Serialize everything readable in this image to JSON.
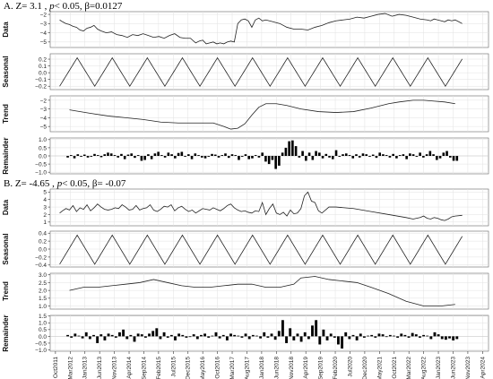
{
  "panel_a_title": {
    "prefix": "A.  Z= 3.1 , ",
    "p": "p",
    "rest": "< 0.05, β=0.0127"
  },
  "panel_b_title": {
    "prefix": "B.  Z= -4.65 , ",
    "p": "p",
    "rest": "< 0.05, β= -0.07"
  },
  "x_ticks": [
    "Oct2011",
    "Mar2012",
    "Jan2013",
    "Jun2013",
    "Nov2013",
    "Apr2014",
    "Sep2014",
    "Feb2015",
    "Jul2015",
    "Dec2015",
    "May2016",
    "Oct2016",
    "Mar2017",
    "Aug2017",
    "Jan2018",
    "Jun2018",
    "Nov2018",
    "Apr2019",
    "Sep2019",
    "Feb2020",
    "Jul2020",
    "Dec2020",
    "May2021",
    "Oct2021",
    "Mar2022",
    "Aug2022",
    "Jan2023",
    "Jun2023",
    "Nov2023",
    "Apr2024"
  ],
  "chart_data": [
    {
      "type": "line",
      "panel": "A",
      "subplots": [
        {
          "ylabel": "Data",
          "ylim": [
            -5.6,
            -1.7
          ],
          "yticks": [
            -2,
            -3,
            -4,
            -5
          ],
          "x": [
            0.12,
            0.2,
            0.3,
            0.4,
            0.5,
            0.6,
            0.7,
            0.8,
            0.9,
            1.0,
            1.1,
            1.2,
            1.3,
            1.45,
            1.6,
            1.75,
            1.9,
            2.05,
            2.2,
            2.35,
            2.5,
            2.65,
            2.8,
            2.95,
            3.1,
            3.25,
            3.4,
            3.55,
            3.7,
            3.85,
            4.0,
            4.1,
            4.2,
            4.3,
            4.4,
            4.5,
            4.6,
            4.7,
            4.8,
            4.9,
            5.0,
            5.1,
            5.2,
            5.3,
            5.4,
            5.5,
            5.6,
            5.7,
            5.8,
            5.9,
            6.0,
            6.2,
            6.4,
            6.6,
            6.8,
            7.0,
            7.2,
            7.4,
            7.6,
            7.8,
            8.0,
            8.2,
            8.4,
            8.6,
            8.8,
            9.0,
            9.2,
            9.4,
            9.6,
            9.8,
            10.0,
            10.2,
            10.4,
            10.6,
            10.7,
            10.8,
            10.9,
            11.0,
            11.1,
            11.2,
            11.3,
            11.4,
            11.5,
            11.6
          ],
          "y": [
            -2.6,
            -2.8,
            -3.0,
            -3.1,
            -3.3,
            -3.4,
            -3.7,
            -3.8,
            -3.5,
            -3.4,
            -3.2,
            -3.6,
            -3.8,
            -4.0,
            -3.9,
            -4.2,
            -4.3,
            -4.5,
            -4.2,
            -4.3,
            -4.1,
            -4.3,
            -4.5,
            -4.4,
            -4.6,
            -4.3,
            -4.1,
            -4.5,
            -4.6,
            -4.6,
            -5.1,
            -4.9,
            -4.8,
            -5.2,
            -5.1,
            -5.0,
            -5.2,
            -5.1,
            -5.2,
            -5.0,
            -4.9,
            -5.0,
            -3.0,
            -2.6,
            -2.5,
            -2.7,
            -3.4,
            -2.6,
            -2.4,
            -2.7,
            -2.6,
            -2.8,
            -3.0,
            -3.4,
            -3.6,
            -3.6,
            -3.7,
            -3.4,
            -3.2,
            -2.9,
            -2.7,
            -2.6,
            -2.5,
            -2.3,
            -2.4,
            -2.2,
            -2.0,
            -1.9,
            -2.2,
            -2.0,
            -2.1,
            -2.3,
            -2.5,
            -2.6,
            -2.7,
            -2.5,
            -2.6,
            -2.7,
            -2.8,
            -2.6,
            -2.7,
            -2.6,
            -2.8,
            -3.0
          ]
        },
        {
          "ylabel": "Seasonal",
          "ylim": [
            -0.25,
            0.28
          ],
          "yticks": [
            0.2,
            0.1,
            0.0,
            -0.1,
            -0.2
          ],
          "seasonal": {
            "start": 0.12,
            "end": 11.6,
            "period": 1.0,
            "min": -0.2,
            "max": 0.22
          }
        },
        {
          "ylabel": "Trend",
          "ylim": [
            -5.6,
            -1.5
          ],
          "yticks": [
            -2,
            -3,
            -4,
            -5
          ],
          "x": [
            0.4,
            1.0,
            1.5,
            2.0,
            2.5,
            3.0,
            3.5,
            4.0,
            4.5,
            4.8,
            5.0,
            5.2,
            5.4,
            5.6,
            5.8,
            6.0,
            6.3,
            6.6,
            7.0,
            7.5,
            8.0,
            8.5,
            9.0,
            9.5,
            9.8,
            10.2,
            10.5,
            10.8,
            11.1,
            11.4
          ],
          "y": [
            -3.1,
            -3.5,
            -3.8,
            -4.0,
            -4.2,
            -4.5,
            -4.6,
            -4.6,
            -4.6,
            -5.0,
            -5.3,
            -5.2,
            -4.7,
            -3.7,
            -2.8,
            -2.4,
            -2.4,
            -2.6,
            -3.0,
            -3.3,
            -3.4,
            -3.3,
            -2.9,
            -2.4,
            -2.2,
            -2.0,
            -2.0,
            -2.1,
            -2.2,
            -2.4
          ]
        },
        {
          "ylabel": "Remainder",
          "ylim": [
            -1.1,
            1.1
          ],
          "yticks": [
            1.0,
            0.5,
            0.0,
            -0.5,
            -1.0
          ],
          "values": [
            -0.1,
            0.05,
            -0.15,
            0.1,
            -0.05,
            0.08,
            -0.1,
            -0.05,
            0.12,
            0.05,
            -0.08,
            0.1,
            0.2,
            0.15,
            0.05,
            -0.1,
            0.12,
            -0.2,
            0.08,
            0.15,
            -0.12,
            0.05,
            -0.3,
            -0.25,
            0.1,
            -0.2,
            0.15,
            0.25,
            0.05,
            -0.1,
            0.2,
            0.1,
            -0.15,
            0.18,
            0.25,
            -0.05,
            0.1,
            -0.2,
            0.15,
            0.05,
            -0.1,
            -0.15,
            -0.05,
            0.12,
            0.08,
            -0.1,
            0.05,
            0.15,
            -0.12,
            0.1,
            0.05,
            -0.25,
            -0.05,
            0.1,
            -0.2,
            -0.15,
            0.05,
            -0.1,
            0.2,
            -0.35,
            -0.5,
            -0.25,
            -0.8,
            -0.6,
            0.2,
            0.5,
            0.9,
            0.95,
            0.6,
            -0.1,
            0.3,
            -0.3,
            0.2,
            -0.25,
            0.3,
            0.2,
            -0.15,
            0.12,
            -0.1,
            -0.2,
            0.35,
            -0.05,
            0.1,
            0.15,
            0.05,
            -0.15,
            0.1,
            -0.1,
            0.15,
            0.1,
            -0.05,
            0.08,
            -0.12,
            0.2,
            0.1,
            0.05,
            -0.1,
            0.12,
            -0.15,
            0.05,
            0.1,
            -0.2,
            0.15,
            0.1,
            -0.05,
            0.2,
            -0.1,
            0.1,
            0.3,
            0.1,
            -0.25,
            -0.15,
            0.2,
            0.3,
            -0.1,
            -0.3,
            -0.3
          ]
        }
      ]
    },
    {
      "type": "line",
      "panel": "B",
      "subplots": [
        {
          "ylabel": "Data",
          "ylim": [
            0.5,
            5.4
          ],
          "yticks": [
            1,
            2,
            3,
            4,
            5
          ],
          "x": [
            0.12,
            0.2,
            0.3,
            0.4,
            0.5,
            0.6,
            0.7,
            0.8,
            0.9,
            1.0,
            1.1,
            1.2,
            1.3,
            1.4,
            1.5,
            1.6,
            1.7,
            1.8,
            1.9,
            2.0,
            2.1,
            2.2,
            2.3,
            2.4,
            2.5,
            2.6,
            2.7,
            2.8,
            2.9,
            3.0,
            3.1,
            3.2,
            3.3,
            3.4,
            3.5,
            3.6,
            3.7,
            3.8,
            3.9,
            4.0,
            4.1,
            4.2,
            4.3,
            4.4,
            4.5,
            4.6,
            4.7,
            4.8,
            4.9,
            5.0,
            5.1,
            5.2,
            5.3,
            5.4,
            5.5,
            5.6,
            5.7,
            5.8,
            5.9,
            6.0,
            6.1,
            6.2,
            6.3,
            6.4,
            6.5,
            6.6,
            6.7,
            6.8,
            6.9,
            7.0,
            7.1,
            7.2,
            7.3,
            7.4,
            7.5,
            7.6,
            7.8,
            8.0,
            8.5,
            9.0,
            9.5,
            10.0,
            10.2,
            10.4,
            10.5,
            10.6,
            10.7,
            10.8,
            10.9,
            11.0,
            11.1,
            11.2,
            11.3,
            11.4,
            11.6
          ],
          "y": [
            2.2,
            2.5,
            2.8,
            2.6,
            3.2,
            2.4,
            2.9,
            2.7,
            3.3,
            2.5,
            2.9,
            3.4,
            3.0,
            2.7,
            2.6,
            2.7,
            2.9,
            2.8,
            3.3,
            3.0,
            2.6,
            2.7,
            3.2,
            2.6,
            2.8,
            2.9,
            3.3,
            2.6,
            2.4,
            2.7,
            3.1,
            3.0,
            3.3,
            2.5,
            2.9,
            3.1,
            2.7,
            2.4,
            2.6,
            2.2,
            2.5,
            2.8,
            2.7,
            2.6,
            2.9,
            2.7,
            2.5,
            2.8,
            3.2,
            3.4,
            2.9,
            2.6,
            2.4,
            2.5,
            2.3,
            2.2,
            2.5,
            2.4,
            3.6,
            2.0,
            2.8,
            3.4,
            2.2,
            2.0,
            2.3,
            1.8,
            2.6,
            2.1,
            2.2,
            2.8,
            4.5,
            5.0,
            3.8,
            3.6,
            2.5,
            2.2,
            3.0,
            3.0,
            2.8,
            2.4,
            2.0,
            1.6,
            1.4,
            1.6,
            1.8,
            1.5,
            1.4,
            1.6,
            1.5,
            1.3,
            1.2,
            1.4,
            1.7,
            1.8,
            1.9
          ]
        },
        {
          "ylabel": "Seasonal",
          "ylim": [
            -0.45,
            0.45
          ],
          "yticks": [
            0.4,
            0.2,
            0.0,
            -0.2,
            -0.4
          ],
          "seasonal": {
            "start": 0.12,
            "end": 11.6,
            "period": 1.0,
            "min": -0.38,
            "max": 0.35
          }
        },
        {
          "ylabel": "Trend",
          "ylim": [
            0.8,
            3.1
          ],
          "yticks": [
            3.0,
            2.5,
            2.0,
            1.5,
            1.0
          ],
          "x": [
            0.4,
            0.8,
            1.2,
            1.6,
            2.0,
            2.4,
            2.8,
            3.2,
            3.6,
            4.0,
            4.4,
            4.8,
            5.2,
            5.6,
            6.0,
            6.4,
            6.8,
            7.0,
            7.4,
            7.8,
            8.2,
            8.6,
            9.0,
            9.5,
            10.0,
            10.5,
            11.0,
            11.4
          ],
          "y": [
            2.0,
            2.2,
            2.2,
            2.3,
            2.4,
            2.5,
            2.7,
            2.5,
            2.3,
            2.2,
            2.2,
            2.3,
            2.4,
            2.4,
            2.2,
            2.2,
            2.4,
            2.8,
            2.9,
            2.7,
            2.6,
            2.5,
            2.2,
            1.8,
            1.3,
            1.0,
            1.0,
            1.1
          ]
        },
        {
          "ylabel": "Remainder",
          "ylim": [
            -1.1,
            1.55
          ],
          "yticks": [
            1.5,
            1.0,
            0.5,
            0.0,
            -0.5,
            -1.0
          ],
          "values": [
            0.1,
            -0.1,
            0.2,
            0.05,
            -0.15,
            0.3,
            -0.2,
            0.1,
            -0.5,
            0.15,
            -0.3,
            0.2,
            0.1,
            -0.1,
            0.3,
            0.5,
            -0.2,
            0.1,
            -0.4,
            0.2,
            0.15,
            -0.1,
            0.2,
            0.4,
            0.6,
            -0.2,
            0.3,
            -0.1,
            0.1,
            -0.3,
            0.2,
            0.1,
            -0.1,
            -0.05,
            0.15,
            -0.2,
            0.1,
            0.2,
            -0.1,
            0.05,
            0.3,
            -0.15,
            0.1,
            -0.3,
            0.2,
            0.1,
            0.05,
            -0.1,
            0.2,
            -0.2,
            0.1,
            0.05,
            -0.15,
            0.3,
            -0.1,
            0.2,
            -0.25,
            0.4,
            1.2,
            -0.5,
            0.6,
            -0.3,
            0.2,
            -0.4,
            0.3,
            -0.2,
            0.8,
            1.2,
            -0.6,
            0.5,
            -0.3,
            0.2,
            -0.1,
            -0.6,
            -0.9,
            0.3,
            -0.2,
            0.1,
            -0.3,
            0.2,
            -0.1,
            0.05,
            0.1,
            -0.1,
            0.2,
            0.15,
            -0.05,
            0.1,
            0.05,
            -0.1,
            0.2,
            0.1,
            -0.1,
            0.25,
            0.15,
            -0.1,
            0.1,
            0.05,
            -0.2,
            0.3,
            0.15,
            -0.2,
            -0.25,
            -0.15,
            -0.3,
            -0.2
          ]
        }
      ]
    }
  ]
}
